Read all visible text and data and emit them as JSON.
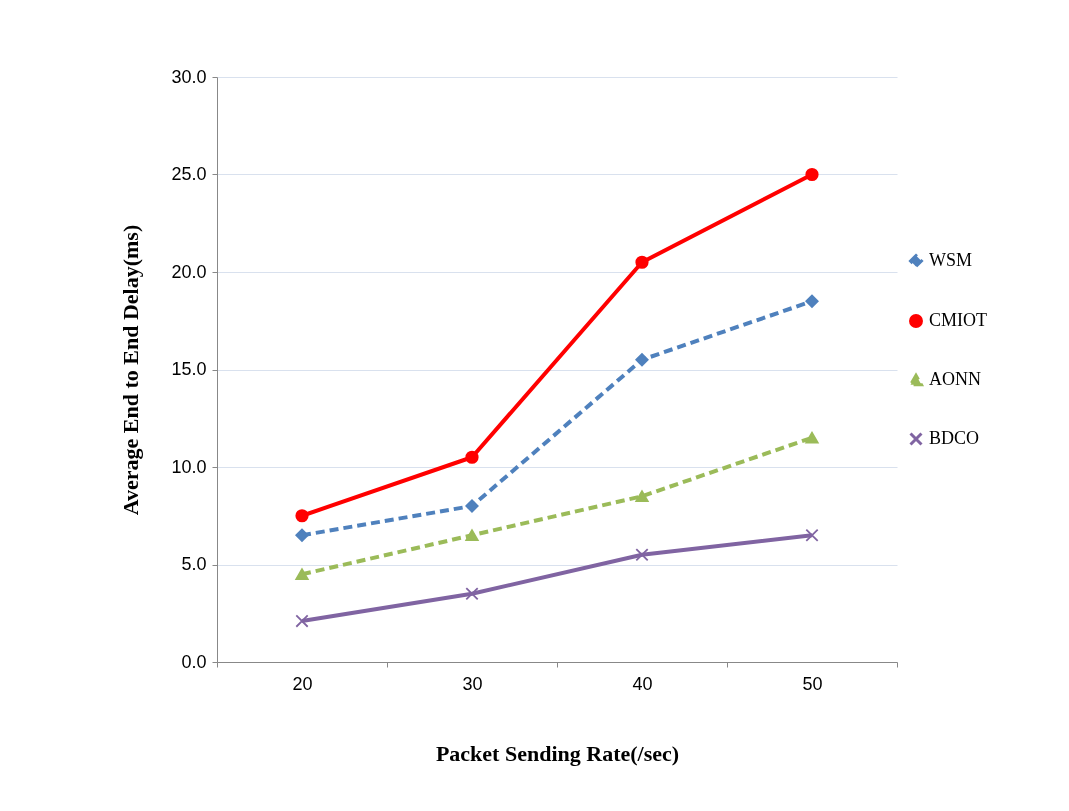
{
  "chart_data": {
    "type": "line",
    "xlabel": "Packet Sending Rate(/sec)",
    "ylabel": "Average End to End Delay(ms)",
    "categories": [
      "20",
      "30",
      "40",
      "50"
    ],
    "series": [
      {
        "name": "WSM",
        "color": "#4f81bd",
        "line_style": "dashed",
        "marker": "diamond",
        "values": [
          6.5,
          8.0,
          15.5,
          18.5
        ]
      },
      {
        "name": "CMIOT",
        "color": "#ff0000",
        "line_style": "solid",
        "marker": "circle",
        "values": [
          7.5,
          10.5,
          20.5,
          25.0
        ]
      },
      {
        "name": "AONN",
        "color": "#9bbb59",
        "line_style": "dashed",
        "marker": "triangle",
        "values": [
          4.5,
          6.5,
          8.5,
          11.5
        ]
      },
      {
        "name": "BDCO",
        "color": "#8064a2",
        "line_style": "solid",
        "marker": "cross",
        "values": [
          2.1,
          3.5,
          5.5,
          6.5
        ]
      }
    ],
    "ylim": [
      0,
      30
    ],
    "yticks": [
      {
        "value": 0,
        "label": "0.0"
      },
      {
        "value": 5,
        "label": "5.0"
      },
      {
        "value": 10,
        "label": "10.0"
      },
      {
        "value": 15,
        "label": "15.0"
      },
      {
        "value": 20,
        "label": "20.0"
      },
      {
        "value": 25,
        "label": "25.0"
      },
      {
        "value": 30,
        "label": "30.0"
      }
    ],
    "grid": "y",
    "legend": "right"
  }
}
